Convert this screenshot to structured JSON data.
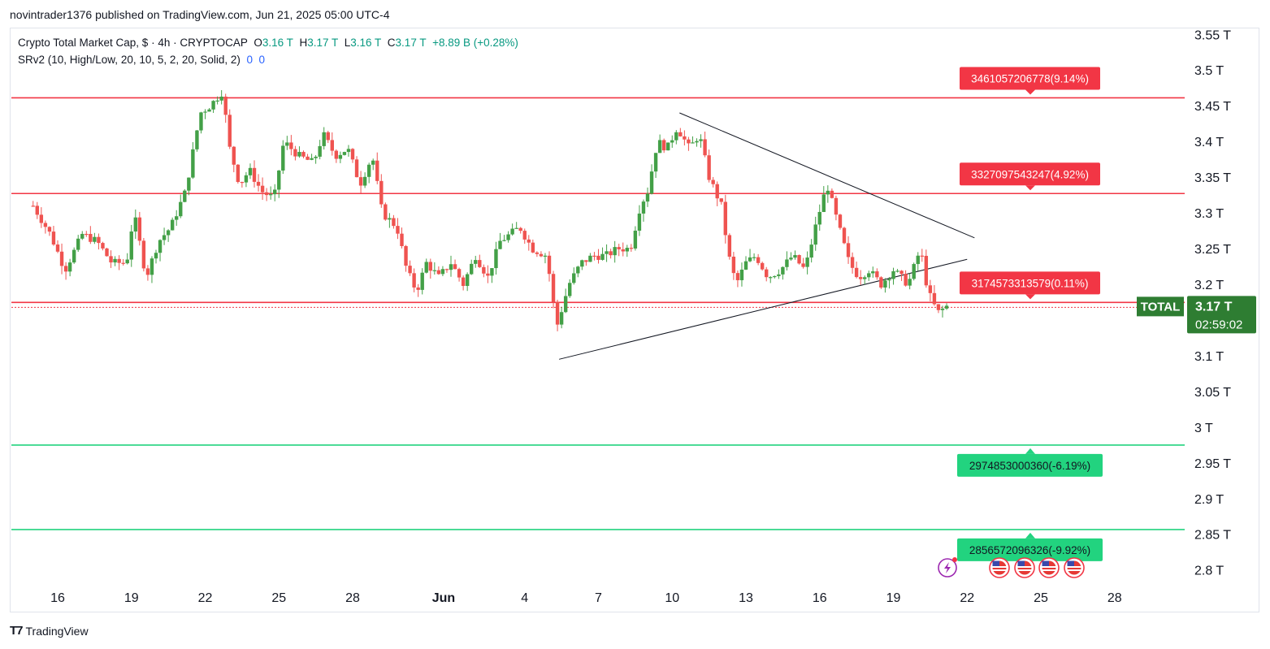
{
  "header": {
    "published": "novintrader1376 published on TradingView.com, Jun 21, 2025 05:00 UTC-4"
  },
  "legend": {
    "symbol": "Crypto Total Market Cap, $ · 4h · CRYPTOCAP",
    "o_label": "O",
    "o_value": "3.16 T",
    "h_label": "H",
    "h_value": "3.17 T",
    "l_label": "L",
    "l_value": "3.16 T",
    "c_label": "C",
    "c_value": "3.17 T",
    "change": "+8.89 B (+0.28%)",
    "indicator": "SRv2 (10, High/Low, 20, 10, 5, 2, 20, Solid, 2)",
    "ind_v1": "0",
    "ind_v2": "0"
  },
  "footer": {
    "brand": "TradingView"
  },
  "colors": {
    "up": "#43a047",
    "down": "#ef5350",
    "resistance": "#f23645",
    "support": "#22d37f",
    "price_label": "#2e7d32"
  },
  "chart_data": {
    "type": "candlestick",
    "ylim": [
      2.77,
      3.57
    ],
    "y_unit": "T",
    "y_ticks": [
      "3.55 T",
      "3.5 T",
      "3.45 T",
      "3.4 T",
      "3.35 T",
      "3.3 T",
      "3.25 T",
      "3.2 T",
      "3.1 T",
      "3.05 T",
      "3 T",
      "2.95 T",
      "2.9 T",
      "2.85 T",
      "2.8 T"
    ],
    "y_tick_values": [
      3.55,
      3.5,
      3.45,
      3.4,
      3.35,
      3.3,
      3.25,
      3.2,
      3.1,
      3.05,
      3.0,
      2.95,
      2.9,
      2.85,
      2.8
    ],
    "x_ticks": [
      {
        "label": "16",
        "day": 16
      },
      {
        "label": "19",
        "day": 19
      },
      {
        "label": "22",
        "day": 22
      },
      {
        "label": "25",
        "day": 25
      },
      {
        "label": "28",
        "day": 28
      },
      {
        "label": "Jun",
        "day": 31.7
      },
      {
        "label": "4",
        "day": 35
      },
      {
        "label": "7",
        "day": 38
      },
      {
        "label": "10",
        "day": 41
      },
      {
        "label": "13",
        "day": 44
      },
      {
        "label": "16",
        "day": 47
      },
      {
        "label": "19",
        "day": 50
      },
      {
        "label": "22",
        "day": 53
      },
      {
        "label": "25",
        "day": 56
      },
      {
        "label": "28",
        "day": 59
      }
    ],
    "price_path": [
      [
        15.0,
        3.31
      ],
      [
        15.7,
        3.27
      ],
      [
        16.3,
        3.22
      ],
      [
        17.0,
        3.27
      ],
      [
        17.6,
        3.26
      ],
      [
        18.2,
        3.23
      ],
      [
        18.8,
        3.23
      ],
      [
        19.1,
        3.3
      ],
      [
        19.6,
        3.21
      ],
      [
        20.1,
        3.26
      ],
      [
        20.6,
        3.28
      ],
      [
        21.2,
        3.33
      ],
      [
        21.8,
        3.44
      ],
      [
        22.2,
        3.45
      ],
      [
        22.7,
        3.47
      ],
      [
        23.0,
        3.39
      ],
      [
        23.4,
        3.34
      ],
      [
        23.8,
        3.36
      ],
      [
        24.3,
        3.33
      ],
      [
        24.8,
        3.32
      ],
      [
        25.2,
        3.4
      ],
      [
        25.8,
        3.38
      ],
      [
        26.4,
        3.37
      ],
      [
        26.8,
        3.41
      ],
      [
        27.3,
        3.38
      ],
      [
        27.8,
        3.39
      ],
      [
        28.3,
        3.34
      ],
      [
        28.8,
        3.38
      ],
      [
        29.2,
        3.3
      ],
      [
        29.8,
        3.28
      ],
      [
        30.2,
        3.22
      ],
      [
        30.6,
        3.19
      ],
      [
        31.0,
        3.23
      ],
      [
        31.5,
        3.21
      ],
      [
        32.0,
        3.23
      ],
      [
        32.5,
        3.2
      ],
      [
        33.0,
        3.24
      ],
      [
        33.5,
        3.21
      ],
      [
        34.0,
        3.26
      ],
      [
        34.4,
        3.27
      ],
      [
        34.8,
        3.28
      ],
      [
        35.3,
        3.25
      ],
      [
        35.9,
        3.24
      ],
      [
        36.3,
        3.14
      ],
      [
        36.8,
        3.2
      ],
      [
        37.3,
        3.23
      ],
      [
        37.8,
        3.24
      ],
      [
        38.3,
        3.24
      ],
      [
        38.8,
        3.25
      ],
      [
        39.3,
        3.25
      ],
      [
        39.7,
        3.31
      ],
      [
        40.0,
        3.33
      ],
      [
        40.4,
        3.4
      ],
      [
        40.8,
        3.39
      ],
      [
        41.2,
        3.42
      ],
      [
        41.7,
        3.39
      ],
      [
        42.1,
        3.41
      ],
      [
        42.5,
        3.35
      ],
      [
        43.0,
        3.31
      ],
      [
        43.3,
        3.24
      ],
      [
        43.6,
        3.2
      ],
      [
        44.0,
        3.23
      ],
      [
        44.4,
        3.24
      ],
      [
        44.9,
        3.21
      ],
      [
        45.4,
        3.22
      ],
      [
        45.9,
        3.24
      ],
      [
        46.4,
        3.22
      ],
      [
        46.9,
        3.29
      ],
      [
        47.3,
        3.34
      ],
      [
        47.7,
        3.29
      ],
      [
        48.2,
        3.23
      ],
      [
        48.6,
        3.21
      ],
      [
        49.0,
        3.22
      ],
      [
        49.5,
        3.2
      ],
      [
        50.0,
        3.22
      ],
      [
        50.6,
        3.2
      ],
      [
        51.1,
        3.25
      ],
      [
        51.4,
        3.19
      ],
      [
        51.8,
        3.16
      ],
      [
        52.2,
        3.17
      ]
    ],
    "levels": [
      {
        "type": "resistance",
        "value": 3.4611,
        "label": "3461057206778(9.14%)"
      },
      {
        "type": "resistance",
        "value": 3.3271,
        "label": "3327097543247(4.92%)"
      },
      {
        "type": "resistance",
        "value": 3.1746,
        "label": "3174573313579(0.11%)"
      },
      {
        "type": "support",
        "value": 2.9749,
        "label": "2974853000360(-6.19%)"
      },
      {
        "type": "support",
        "value": 2.8566,
        "label": "2856572096326(-9.92%)"
      }
    ],
    "trendlines": [
      {
        "from": {
          "day": 41.3,
          "price": 3.44
        },
        "to": {
          "day": 53.3,
          "price": 3.265
        }
      },
      {
        "from": {
          "day": 36.4,
          "price": 3.095
        },
        "to": {
          "day": 53.0,
          "price": 3.235
        }
      }
    ],
    "current_price": {
      "symbol": "TOTAL",
      "value": 3.17,
      "label": "3.17 T",
      "countdown": "02:59:02"
    }
  }
}
